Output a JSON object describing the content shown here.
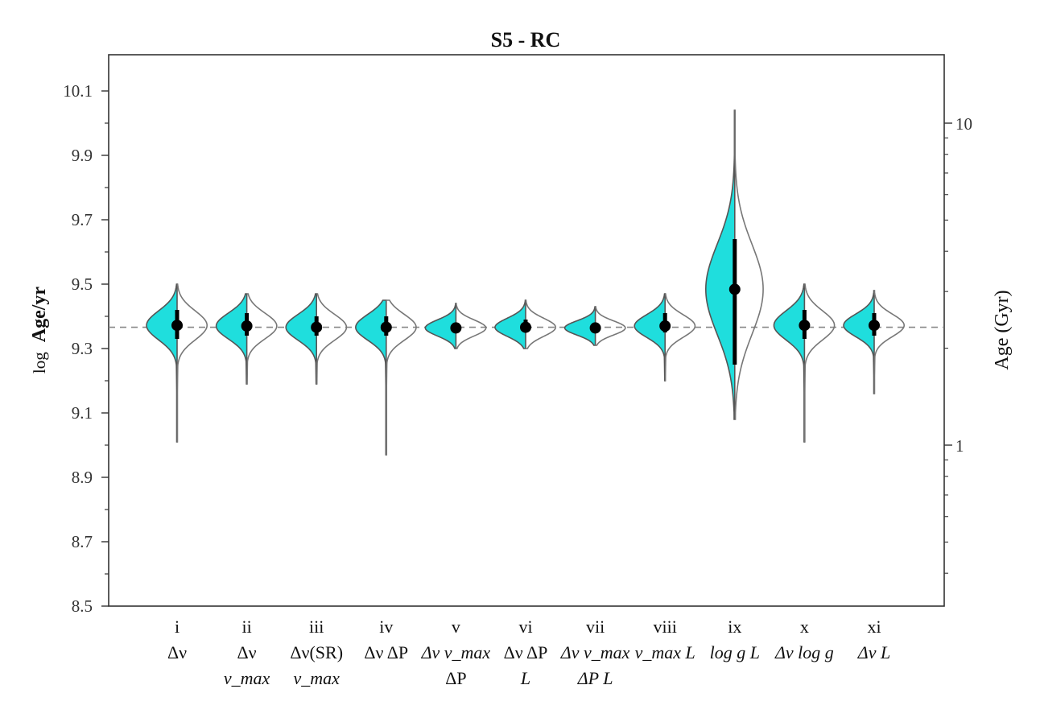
{
  "chart_data": {
    "type": "violin",
    "title": "S5 - RC",
    "ylabel_prefix": "log",
    "ylabel_main": "Age/yr",
    "y2label": "Age (Gyr)",
    "ylim": [
      8.5,
      10.2
    ],
    "yticks": [
      8.5,
      8.7,
      8.9,
      9.1,
      9.3,
      9.5,
      9.7,
      9.9,
      10.1
    ],
    "ytick_labels": [
      "8.5",
      "8.7",
      "8.9",
      "9.1",
      "9.3",
      "9.5",
      "9.7",
      "9.9",
      "10.1"
    ],
    "y2ticks_gyr": [
      1,
      10
    ],
    "y2tick_labels": [
      "1",
      "10"
    ],
    "reference_line": 9.366,
    "colors": {
      "left_fill": "#1fdedd",
      "left_stroke": "#555555",
      "right_stroke": "#777777",
      "reference": "#888888",
      "marker": "#000000",
      "axes": "#333333"
    },
    "categories": [
      {
        "roman": "i",
        "lines": [
          "Δν"
        ],
        "median": 9.372,
        "q_low": 9.33,
        "q_high": 9.42,
        "min": 9.01,
        "max": 9.5,
        "spread": 0.045
      },
      {
        "roman": "ii",
        "lines": [
          "Δν",
          "ν_max"
        ],
        "median": 9.37,
        "q_low": 9.34,
        "q_high": 9.41,
        "min": 9.19,
        "max": 9.47,
        "spread": 0.04
      },
      {
        "roman": "iii",
        "lines": [
          "Δν(SR)",
          "ν_max"
        ],
        "median": 9.366,
        "q_low": 9.34,
        "q_high": 9.4,
        "min": 9.19,
        "max": 9.47,
        "spread": 0.04
      },
      {
        "roman": "iv",
        "lines": [
          "Δν  ΔP"
        ],
        "median": 9.366,
        "q_low": 9.34,
        "q_high": 9.4,
        "min": 8.97,
        "max": 9.45,
        "spread": 0.04
      },
      {
        "roman": "v",
        "lines": [
          "Δν  ν_max",
          "ΔP"
        ],
        "median": 9.364,
        "q_low": 9.35,
        "q_high": 9.38,
        "min": 9.3,
        "max": 9.44,
        "spread": 0.025
      },
      {
        "roman": "vi",
        "lines": [
          "Δν  ΔP",
          "L"
        ],
        "median": 9.366,
        "q_low": 9.35,
        "q_high": 9.39,
        "min": 9.3,
        "max": 9.45,
        "spread": 0.028
      },
      {
        "roman": "vii",
        "lines": [
          "Δν  ν_max",
          "ΔP  L"
        ],
        "median": 9.364,
        "q_low": 9.35,
        "q_high": 9.38,
        "min": 9.31,
        "max": 9.43,
        "spread": 0.022
      },
      {
        "roman": "viii",
        "lines": [
          "ν_max  L"
        ],
        "median": 9.37,
        "q_low": 9.35,
        "q_high": 9.41,
        "min": 9.2,
        "max": 9.47,
        "spread": 0.035
      },
      {
        "roman": "ix",
        "lines": [
          "log g  L"
        ],
        "median": 9.484,
        "q_low": 9.25,
        "q_high": 9.64,
        "min": 9.08,
        "max": 10.04,
        "spread": 0.14
      },
      {
        "roman": "x",
        "lines": [
          "Δν  log g"
        ],
        "median": 9.372,
        "q_low": 9.33,
        "q_high": 9.42,
        "min": 9.01,
        "max": 9.5,
        "spread": 0.045
      },
      {
        "roman": "xi",
        "lines": [
          "Δν  L"
        ],
        "median": 9.372,
        "q_low": 9.34,
        "q_high": 9.41,
        "min": 9.16,
        "max": 9.48,
        "spread": 0.035
      }
    ]
  }
}
